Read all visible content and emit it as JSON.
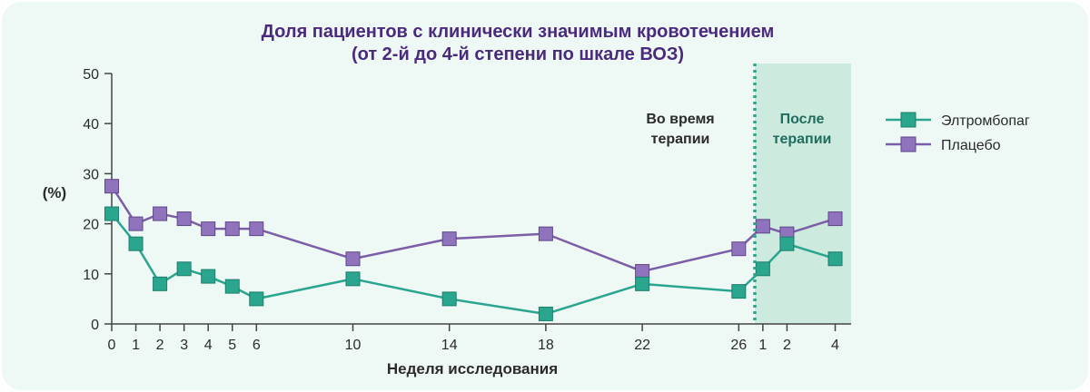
{
  "chart_data": {
    "type": "line",
    "title": [
      "Доля пациентов с клинически значимым кровотечением",
      "(от 2-й до 4-й степени по шкале ВОЗ)"
    ],
    "xlabel": "Неделя исследования",
    "ylabel": "(%)",
    "ylim": [
      0,
      50
    ],
    "yticks": [
      0,
      10,
      20,
      30,
      40,
      50
    ],
    "categories": [
      "0",
      "1",
      "2",
      "3",
      "4",
      "5",
      "6",
      "10",
      "14",
      "18",
      "22",
      "26",
      "1",
      "2",
      "4"
    ],
    "x_positions": [
      0,
      1,
      2,
      3,
      4,
      5,
      6,
      10,
      14,
      18,
      22,
      26,
      27,
      28,
      30
    ],
    "series": [
      {
        "name": "Элтромбопаг",
        "color": "#2aa58e",
        "values": [
          22,
          16,
          8,
          11,
          9.5,
          7.5,
          5,
          9,
          5,
          2,
          8,
          6.5,
          11,
          16,
          13
        ]
      },
      {
        "name": "Плацебо",
        "color": "#7b5ea7",
        "values": [
          27.5,
          20,
          22,
          21,
          19,
          19,
          19,
          13,
          17,
          18,
          10.5,
          15,
          19.5,
          18,
          21
        ]
      }
    ],
    "regions": [
      {
        "label": [
          "Во время",
          "терапии"
        ],
        "color": "#2b2b2b"
      },
      {
        "label": [
          "После",
          "терапии"
        ],
        "color": "#1f6d5e",
        "fill": "#cdeadf"
      }
    ],
    "legend": [
      "Элтромбопаг",
      "Плацебо"
    ],
    "legend_position": "right"
  }
}
